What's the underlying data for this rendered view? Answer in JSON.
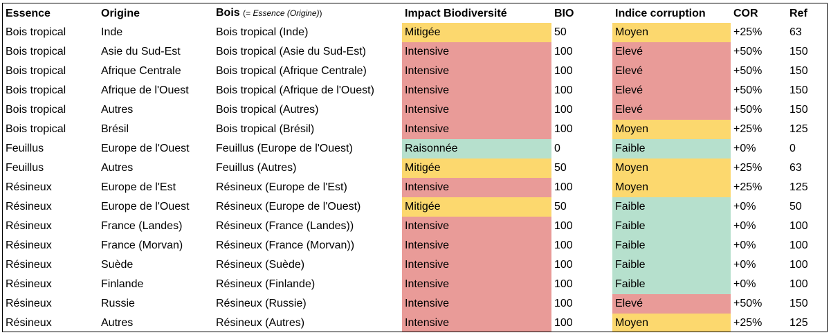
{
  "colors": {
    "Mitigée": "#fcd86e",
    "Intensive": "#e99b98",
    "Raisonnée": "#b6e0cd",
    "Moyen": "#fcd86e",
    "Elevé": "#e99b98",
    "Faible": "#b6e0cd"
  },
  "headers": {
    "essence": "Essence",
    "origine": "Origine",
    "bois": "Bois",
    "bois_note_open": "(= ",
    "bois_note_italic": "Essence (Origine)",
    "bois_note_close": ")",
    "impact": "Impact Biodiversité",
    "bio": "BIO",
    "corruption": "Indice corruption",
    "cor": "COR",
    "ref": "Ref"
  },
  "rows": [
    {
      "essence": "Bois tropical",
      "origine": "Inde",
      "bois": "Bois tropical (Inde)",
      "impact": "Mitigée",
      "bio": "50",
      "corruption": "Moyen",
      "cor": "+25%",
      "ref": "63"
    },
    {
      "essence": "Bois tropical",
      "origine": "Asie du Sud-Est",
      "bois": "Bois tropical (Asie du Sud-Est)",
      "impact": "Intensive",
      "bio": "100",
      "corruption": "Elevé",
      "cor": "+50%",
      "ref": "150"
    },
    {
      "essence": "Bois tropical",
      "origine": "Afrique Centrale",
      "bois": "Bois tropical (Afrique Centrale)",
      "impact": "Intensive",
      "bio": "100",
      "corruption": "Elevé",
      "cor": "+50%",
      "ref": "150"
    },
    {
      "essence": "Bois tropical",
      "origine": "Afrique de l'Ouest",
      "bois": "Bois tropical (Afrique de l'Ouest)",
      "impact": "Intensive",
      "bio": "100",
      "corruption": "Elevé",
      "cor": "+50%",
      "ref": "150"
    },
    {
      "essence": "Bois tropical",
      "origine": "Autres",
      "bois": "Bois tropical (Autres)",
      "impact": "Intensive",
      "bio": "100",
      "corruption": "Elevé",
      "cor": "+50%",
      "ref": "150"
    },
    {
      "essence": "Bois tropical",
      "origine": "Brésil",
      "bois": "Bois tropical (Brésil)",
      "impact": "Intensive",
      "bio": "100",
      "corruption": "Moyen",
      "cor": "+25%",
      "ref": "125"
    },
    {
      "essence": "Feuillus",
      "origine": "Europe de l'Ouest",
      "bois": "Feuillus (Europe de l'Ouest)",
      "impact": "Raisonnée",
      "bio": "0",
      "corruption": "Faible",
      "cor": "+0%",
      "ref": "0"
    },
    {
      "essence": "Feuillus",
      "origine": "Autres",
      "bois": "Feuillus (Autres)",
      "impact": "Mitigée",
      "bio": "50",
      "corruption": "Moyen",
      "cor": "+25%",
      "ref": "63"
    },
    {
      "essence": "Résineux",
      "origine": "Europe de l'Est",
      "bois": "Résineux (Europe de l'Est)",
      "impact": "Intensive",
      "bio": "100",
      "corruption": "Moyen",
      "cor": "+25%",
      "ref": "125"
    },
    {
      "essence": "Résineux",
      "origine": "Europe de l'Ouest",
      "bois": "Résineux (Europe de l'Ouest)",
      "impact": "Mitigée",
      "bio": "50",
      "corruption": "Faible",
      "cor": "+0%",
      "ref": "50"
    },
    {
      "essence": "Résineux",
      "origine": "France (Landes)",
      "bois": "Résineux (France (Landes))",
      "impact": "Intensive",
      "bio": "100",
      "corruption": "Faible",
      "cor": "+0%",
      "ref": "100"
    },
    {
      "essence": "Résineux",
      "origine": "France (Morvan)",
      "bois": "Résineux (France (Morvan))",
      "impact": "Intensive",
      "bio": "100",
      "corruption": "Faible",
      "cor": "+0%",
      "ref": "100"
    },
    {
      "essence": "Résineux",
      "origine": "Suède",
      "bois": "Résineux (Suède)",
      "impact": "Intensive",
      "bio": "100",
      "corruption": "Faible",
      "cor": "+0%",
      "ref": "100"
    },
    {
      "essence": "Résineux",
      "origine": "Finlande",
      "bois": "Résineux (Finlande)",
      "impact": "Intensive",
      "bio": "100",
      "corruption": "Faible",
      "cor": "+0%",
      "ref": "100"
    },
    {
      "essence": "Résineux",
      "origine": "Russie",
      "bois": "Résineux (Russie)",
      "impact": "Intensive",
      "bio": "100",
      "corruption": "Elevé",
      "cor": "+50%",
      "ref": "150"
    },
    {
      "essence": "Résineux",
      "origine": "Autres",
      "bois": "Résineux (Autres)",
      "impact": "Intensive",
      "bio": "100",
      "corruption": "Moyen",
      "cor": "+25%",
      "ref": "125"
    }
  ]
}
